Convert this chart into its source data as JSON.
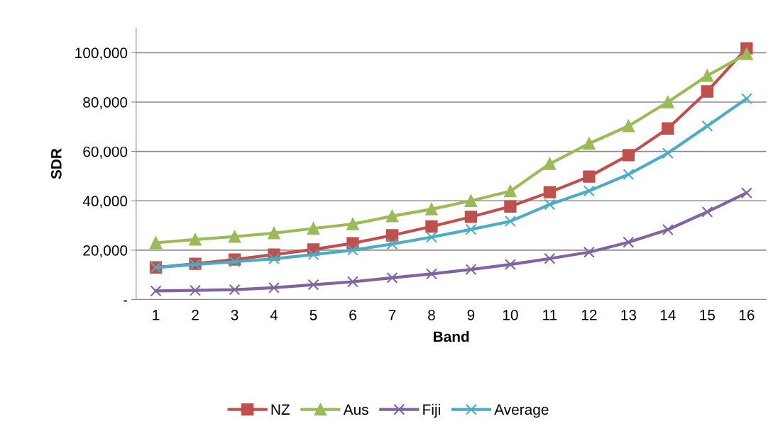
{
  "chart_data": {
    "type": "line",
    "xlabel": "Band",
    "ylabel": "SDR",
    "categories": [
      "1",
      "2",
      "3",
      "4",
      "5",
      "6",
      "7",
      "8",
      "9",
      "10",
      "11",
      "12",
      "13",
      "14",
      "15",
      "16"
    ],
    "series": [
      {
        "name": "NZ",
        "color": "#c0504d",
        "marker": "square",
        "values": [
          13000,
          14500,
          16200,
          18200,
          20300,
          22800,
          26000,
          29600,
          33500,
          37700,
          43500,
          49800,
          58500,
          69300,
          84300,
          101800
        ]
      },
      {
        "name": "Aus",
        "color": "#9bbb59",
        "marker": "triangle",
        "values": [
          23000,
          24300,
          25500,
          26900,
          28800,
          30600,
          33800,
          36600,
          40000,
          43900,
          55000,
          63200,
          70300,
          80000,
          90700,
          99500
        ]
      },
      {
        "name": "Fiji",
        "color": "#8064a2",
        "marker": "cross",
        "values": [
          3500,
          3700,
          4000,
          4800,
          6000,
          7200,
          8800,
          10400,
          12200,
          14200,
          16600,
          19200,
          23200,
          28300,
          35500,
          43200
        ]
      },
      {
        "name": "Average",
        "color": "#4bacc6",
        "marker": "cross",
        "values": [
          13000,
          14200,
          15300,
          16500,
          18200,
          20000,
          22500,
          25300,
          28400,
          31700,
          38500,
          44000,
          50700,
          59300,
          70300,
          81400
        ]
      }
    ],
    "ylim": [
      0,
      110000
    ],
    "yticks": [
      {
        "value": 0,
        "label": "-"
      },
      {
        "value": 20000,
        "label": "20,000"
      },
      {
        "value": 40000,
        "label": "40,000"
      },
      {
        "value": 60000,
        "label": "60,000"
      },
      {
        "value": 80000,
        "label": "80,000"
      },
      {
        "value": 100000,
        "label": "100,000"
      }
    ],
    "grid": "y",
    "legend": "bottom",
    "line_style": "solid"
  }
}
